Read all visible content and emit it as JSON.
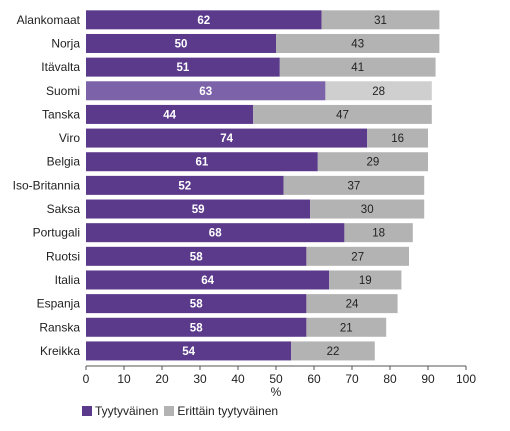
{
  "chart_data": {
    "type": "bar",
    "orientation": "horizontal",
    "stacked": true,
    "categories": [
      "Alankomaat",
      "Norja",
      "Itävalta",
      "Suomi",
      "Tanska",
      "Viro",
      "Belgia",
      "Iso-Britannia",
      "Saksa",
      "Portugali",
      "Ruotsi",
      "Italia",
      "Espanja",
      "Ranska",
      "Kreikka"
    ],
    "series": [
      {
        "name": "Tyytyväinen",
        "values": [
          62,
          50,
          51,
          63,
          44,
          74,
          61,
          52,
          59,
          68,
          58,
          64,
          58,
          58,
          54
        ],
        "color": "#5b3a8c",
        "highlight_color": "#7c62a8"
      },
      {
        "name": "Erittäin tyytyväinen",
        "values": [
          31,
          43,
          41,
          28,
          47,
          16,
          29,
          37,
          30,
          18,
          27,
          19,
          24,
          21,
          22
        ],
        "color": "#b3b3b3",
        "highlight_color": "#cfcfcf"
      }
    ],
    "highlight_category": "Suomi",
    "xlabel": "%",
    "xlim": [
      0,
      100
    ],
    "xticks": [
      "0",
      "10",
      "20",
      "30",
      "40",
      "50",
      "60",
      "70",
      "80",
      "90",
      "100"
    ],
    "legend_position": "bottom-left",
    "grid": false
  }
}
